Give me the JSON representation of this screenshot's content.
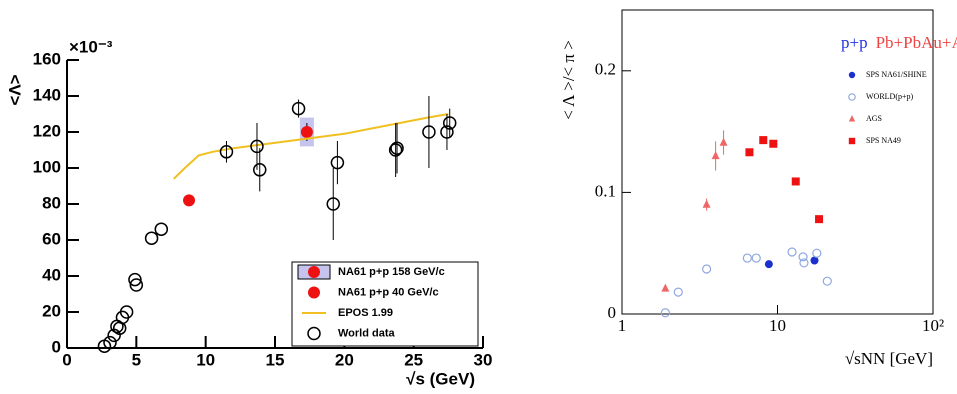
{
  "chart_data": [
    {
      "type": "scatter",
      "y_multiplier": "×10⁻³",
      "y_label": "<Λ>",
      "x_label": "√s (GeV)",
      "xlim": [
        0,
        30
      ],
      "xticks": [
        0,
        5,
        10,
        15,
        20,
        25,
        30
      ],
      "ylim": [
        0,
        160
      ],
      "yticks": [
        0,
        20,
        40,
        60,
        80,
        100,
        120,
        140,
        160
      ],
      "xlog": false,
      "series": [
        {
          "name": "NA61 p+p 158 GeV/c",
          "marker": "filled-circle",
          "color": "#ee1111",
          "band_color": "#c4c4ee",
          "x": [
            17.3
          ],
          "values": [
            120
          ],
          "errors": [
            5
          ],
          "sys_errors": [
            8
          ]
        },
        {
          "name": "NA61 p+p 40 GeV/c",
          "marker": "filled-circle",
          "color": "#ee1111",
          "x": [
            8.8
          ],
          "values": [
            82
          ]
        },
        {
          "name": "EPOS 1.99",
          "marker": "line",
          "color": "#f0c020",
          "x": [
            7.7,
            8.5,
            9.5,
            10.5,
            12,
            14,
            16,
            18,
            20,
            22,
            24,
            26,
            27.5
          ],
          "values": [
            94,
            100,
            107,
            109,
            111,
            113,
            115,
            117,
            119,
            122,
            125,
            128,
            130
          ]
        },
        {
          "name": "World data",
          "marker": "open-circle",
          "color": "#000000",
          "x": [
            2.7,
            3.1,
            3.4,
            3.6,
            3.8,
            4.0,
            4.3,
            4.9,
            5.0,
            6.1,
            6.8,
            11.5,
            13.7,
            13.9,
            16.7,
            19.2,
            19.5,
            23.7,
            23.8,
            26.1,
            27.4,
            27.6
          ],
          "values": [
            1,
            3,
            7,
            12,
            11,
            17,
            20,
            38,
            35,
            61,
            66,
            109,
            112,
            99,
            133,
            80,
            103,
            110,
            111,
            120,
            120,
            125
          ],
          "errors": [
            null,
            null,
            null,
            null,
            null,
            null,
            null,
            null,
            null,
            null,
            null,
            6,
            13,
            12,
            5,
            20,
            12,
            15,
            14,
            20,
            10,
            8
          ]
        }
      ]
    },
    {
      "type": "scatter",
      "y_label": "< Λ >/< π >",
      "x_label": "√sNN [GeV]",
      "xlim": [
        1,
        100
      ],
      "xticks": [
        1,
        10,
        {
          "value": 100,
          "label": "10²"
        }
      ],
      "ylim": [
        0,
        0.25
      ],
      "yticks": [
        0,
        0.1,
        0.2
      ],
      "xlog": true,
      "legend_header": [
        {
          "text": "p+p",
          "color": "#2233dd"
        },
        {
          "text": "Pb+Pb",
          "color": "#ee4444"
        },
        {
          "text": "Au+Au",
          "color": "#ee4444"
        }
      ],
      "series": [
        {
          "name": "SPS NA61/SHINE",
          "marker": "filled-circle",
          "color": "#1a2fd0",
          "x": [
            8.8,
            17.3
          ],
          "values": [
            0.041,
            0.044
          ]
        },
        {
          "name": "WORLD(p+p)",
          "marker": "open-circle",
          "color": "#8fa8e0",
          "x": [
            1.9,
            2.3,
            3.5,
            6.4,
            7.3,
            12.4,
            14.6,
            14.8,
            17.9,
            20.9
          ],
          "values": [
            0.001,
            0.018,
            0.037,
            0.046,
            0.046,
            0.051,
            0.047,
            0.042,
            0.05,
            0.027
          ]
        },
        {
          "name": "AGS",
          "marker": "triangle",
          "color": "#ee6666",
          "x": [
            1.9,
            3.5,
            4.0,
            4.5
          ],
          "values": [
            0.021,
            0.09,
            0.13,
            0.141
          ],
          "errors": [
            null,
            0.005,
            0.012,
            0.01
          ]
        },
        {
          "name": "SPS NA49",
          "marker": "square",
          "color": "#ee1111",
          "x": [
            6.6,
            8.1,
            9.4,
            13.1,
            18.5
          ],
          "values": [
            0.133,
            0.143,
            0.14,
            0.109,
            0.078
          ]
        }
      ]
    }
  ]
}
